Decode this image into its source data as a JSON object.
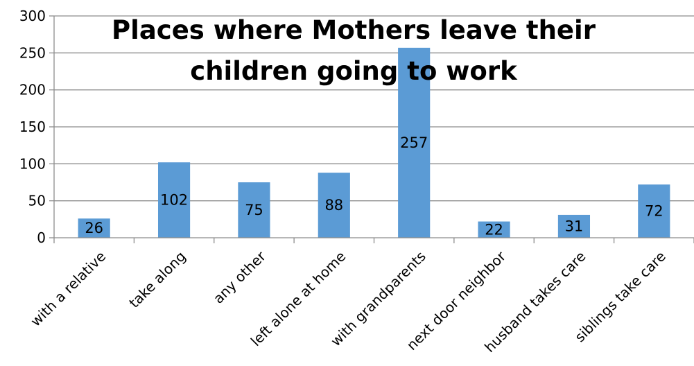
{
  "chart_data": {
    "type": "bar",
    "title_lines": [
      "Places where Mothers leave their",
      "children going  to work"
    ],
    "categories": [
      "with  a relative",
      "take along",
      "any other",
      "left alone at home",
      "with grandparents",
      "next door neighbor",
      "husband takes care",
      "siblings take care"
    ],
    "values": [
      26,
      102,
      75,
      88,
      257,
      22,
      31,
      72
    ],
    "ylim": [
      0,
      300
    ],
    "yticks": [
      0,
      50,
      100,
      150,
      200,
      250,
      300
    ],
    "grid": true,
    "data_labels": true,
    "legend": false,
    "colors": {
      "bar": "#5b9bd5",
      "grid": "#8c8c8c",
      "axis": "#8c8c8c"
    }
  }
}
